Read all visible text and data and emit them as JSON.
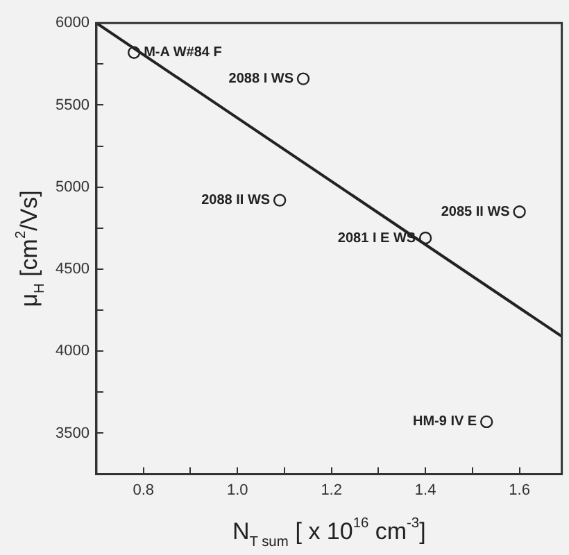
{
  "chart_data": {
    "type": "scatter",
    "xlabel": "N$_{T sum}$ [ x 10$^{16}$ cm$^{-3}$]",
    "ylabel": "μ$_{H}$ [cm$^{2}$/Vs]",
    "xlim": [
      0.7,
      1.69
    ],
    "ylim": [
      3250,
      6000
    ],
    "xticks": [
      0.8,
      {
        "value": 0.9,
        "label": null
      },
      {
        "value": 1,
        "label": "1.0"
      },
      {
        "value": 1.1,
        "label": null
      },
      1.2,
      {
        "value": 1.3,
        "label": null
      },
      1.4,
      {
        "value": 1.5,
        "label": null
      },
      1.6
    ],
    "yticks": [
      {
        "value": 3250,
        "label": null
      },
      3500,
      {
        "value": 3750,
        "label": null
      },
      4000,
      {
        "value": 4250,
        "label": null
      },
      4500,
      {
        "value": 4750,
        "label": null
      },
      5000,
      {
        "value": 5250,
        "label": null
      },
      5500,
      {
        "value": 5750,
        "label": null
      },
      6000
    ],
    "grid": false,
    "legend": false,
    "series": [
      {
        "color": "#222222",
        "marker": "circle",
        "x": [
          0.78,
          1.14,
          1.09,
          1.6,
          1.4,
          1.53
        ],
        "values": [
          5820,
          5660,
          4920,
          4850,
          4690,
          3570
        ]
      },
      {
        "type": "line",
        "color": "#222222",
        "marker": "none",
        "line_style": "solid",
        "x": [
          0.7,
          1.69
        ],
        "values": [
          6000,
          4090
        ]
      }
    ],
    "annotations": [
      {
        "text": "M-A W#84 F",
        "x": 0.78,
        "y": 5820
      },
      {
        "text": "2088 I WS",
        "x": 1.14,
        "y": 5660
      },
      {
        "text": "2088 II WS",
        "x": 1.09,
        "y": 4920
      },
      {
        "text": "2085 II WS",
        "x": 1.6,
        "y": 4850
      },
      {
        "text": "2081 I E WS",
        "x": 1.4,
        "y": 4690
      },
      {
        "text": "HM-9 IV E",
        "x": 1.53,
        "y": 3570
      }
    ]
  }
}
